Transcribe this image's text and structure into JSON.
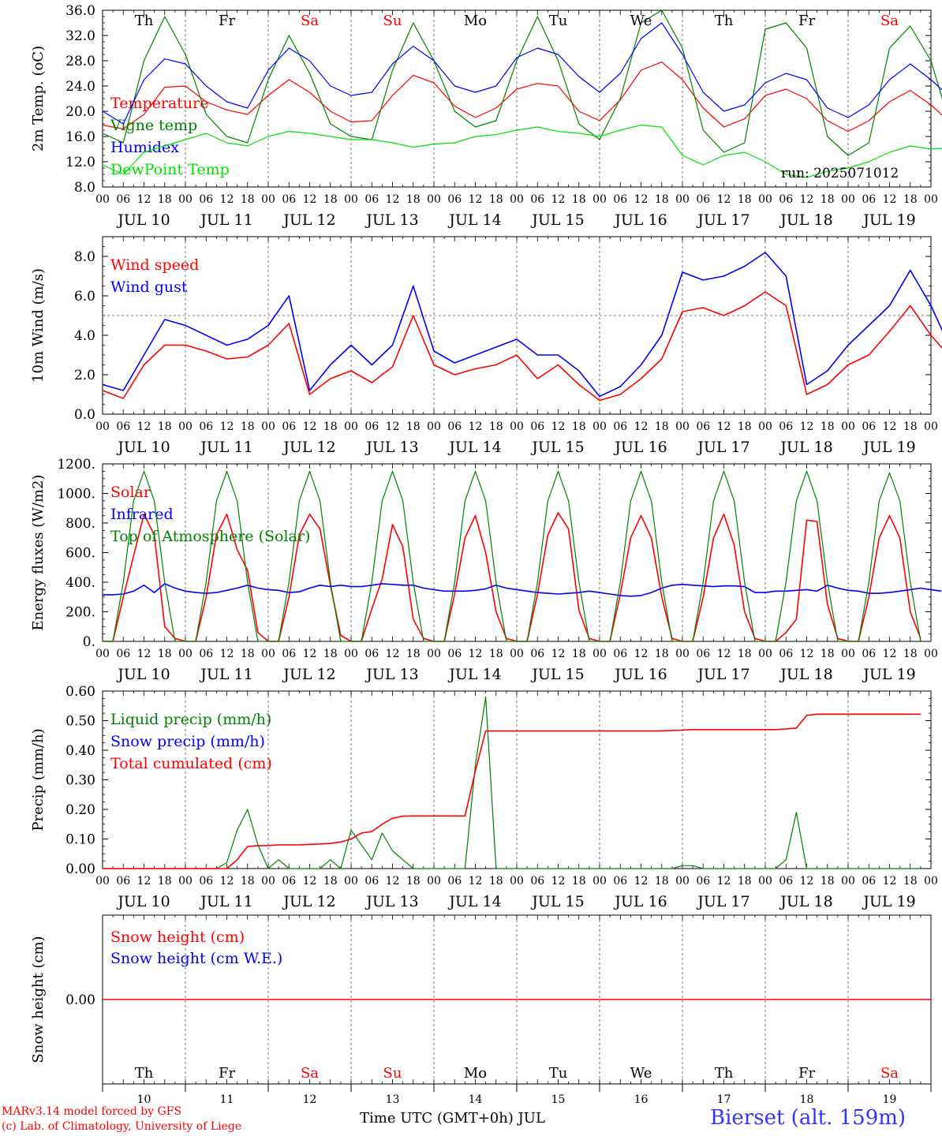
{
  "station": "Bierset (alt. 159m)",
  "credits": [
    "MARv3.14 model forced by GFS",
    "(c) Lab. of Climatology, University of Liege"
  ],
  "run_label": "run: 2025071012",
  "time_axis_label": "Time UTC (GMT+0h) JUL",
  "hour_ticks": [
    "00",
    "06",
    "12",
    "18"
  ],
  "days": [
    {
      "date": "JUL 10",
      "num": "10",
      "wd": "Th",
      "weekend": false
    },
    {
      "date": "JUL 11",
      "num": "11",
      "wd": "Fr",
      "weekend": false
    },
    {
      "date": "JUL 12",
      "num": "12",
      "wd": "Sa",
      "weekend": true
    },
    {
      "date": "JUL 13",
      "num": "13",
      "wd": "Su",
      "weekend": true
    },
    {
      "date": "JUL 14",
      "num": "14",
      "wd": "Mo",
      "weekend": false
    },
    {
      "date": "JUL 15",
      "num": "15",
      "wd": "Tu",
      "weekend": false
    },
    {
      "date": "JUL 16",
      "num": "16",
      "wd": "We",
      "weekend": false
    },
    {
      "date": "JUL 17",
      "num": "17",
      "wd": "Th",
      "weekend": false
    },
    {
      "date": "JUL 18",
      "num": "18",
      "wd": "Fr",
      "weekend": false
    },
    {
      "date": "JUL 19",
      "num": "19",
      "wd": "Sa",
      "weekend": true
    }
  ],
  "colors": {
    "red": "#ff0000",
    "blue": "#0000ff",
    "green": "#008000",
    "lime": "#00e000",
    "weekend": "#ff0000",
    "grid": "#555555"
  },
  "chart_data": [
    {
      "id": "temp",
      "type": "line",
      "ylabel": "2m Temp. (oC)",
      "ylim": [
        8,
        36
      ],
      "yticks": [
        "8.0",
        "12.0",
        "16.0",
        "20.0",
        "24.0",
        "28.0",
        "32.0",
        "36.0"
      ],
      "x_unit": "hours since JUL 10 00 UTC",
      "x_step": 6,
      "series": [
        {
          "name": "Temperature",
          "color": "red",
          "values": [
            17.8,
            17.2,
            19.5,
            23.8,
            24.0,
            21.5,
            20.2,
            19.5,
            22.5,
            25.0,
            23.0,
            20.0,
            18.3,
            18.5,
            22.5,
            25.7,
            24.5,
            20.8,
            19.0,
            20.5,
            23.5,
            24.4,
            24.0,
            20.0,
            18.5,
            21.8,
            26.5,
            27.8,
            25.0,
            20.5,
            17.5,
            18.8,
            22.5,
            23.5,
            22.0,
            18.5,
            16.8,
            18.5,
            21.5,
            23.3,
            21.0,
            18.0,
            16.7,
            18.5,
            21.5,
            23.5,
            22.0,
            19.0,
            18.0,
            19.5,
            25.0,
            29.5,
            27.0,
            21.0,
            17.3,
            19.0,
            24.5,
            28.3,
            26.0,
            21.8
          ]
        },
        {
          "name": "Vigne temp",
          "color": "green",
          "values": [
            16.5,
            15.0,
            28.0,
            35.0,
            29.0,
            19.5,
            16.0,
            15.0,
            25.0,
            32.0,
            26.0,
            18.0,
            16.0,
            15.5,
            26.5,
            34.0,
            28.0,
            20.0,
            17.5,
            18.5,
            28.0,
            35.0,
            28.0,
            18.0,
            15.5,
            22.0,
            34.0,
            36.0,
            30.0,
            17.0,
            13.5,
            15.0,
            33.0,
            34.0,
            30.0,
            16.0,
            13.0,
            15.0,
            30.0,
            33.5,
            28.0,
            17.0,
            13.5,
            15.0,
            30.0,
            33.0,
            27.0,
            17.0,
            15.0,
            16.5,
            32.0,
            38.0,
            32.0,
            20.0,
            14.0,
            17.0,
            34.0,
            37.0,
            30.0,
            18.0
          ]
        },
        {
          "name": "Humidex",
          "color": "blue",
          "values": [
            20.0,
            18.0,
            25.0,
            28.3,
            27.5,
            24.0,
            21.5,
            20.5,
            26.5,
            30.0,
            28.0,
            24.0,
            22.5,
            23.0,
            27.5,
            30.3,
            28.0,
            24.0,
            23.0,
            24.0,
            28.5,
            30.0,
            29.0,
            25.5,
            23.0,
            26.0,
            31.5,
            34.0,
            29.0,
            23.0,
            20.0,
            21.0,
            24.5,
            26.0,
            25.0,
            20.5,
            19.0,
            21.0,
            25.0,
            27.5,
            25.0,
            22.0,
            20.5,
            22.0,
            25.0,
            26.8,
            25.0,
            22.0,
            20.0,
            22.5,
            31.0,
            35.0,
            31.0,
            24.0,
            20.5,
            23.5,
            31.0,
            34.0,
            30.0,
            25.0
          ]
        },
        {
          "name": "DewPoint Temp",
          "color": "lime",
          "values": [
            11.5,
            10.0,
            13.5,
            14.5,
            15.5,
            16.5,
            15.0,
            14.5,
            16.0,
            16.8,
            16.5,
            16.0,
            15.5,
            15.5,
            15.0,
            14.3,
            14.8,
            15.0,
            16.0,
            16.3,
            17.0,
            17.5,
            16.8,
            16.5,
            16.0,
            17.0,
            17.8,
            17.5,
            13.0,
            11.5,
            13.0,
            13.5,
            12.0,
            10.0,
            9.5,
            10.5,
            11.0,
            12.0,
            13.5,
            14.5,
            14.0,
            14.2,
            14.0,
            14.5,
            14.8,
            13.8,
            13.0,
            12.5,
            11.5,
            11.0,
            13.0,
            15.5,
            16.0,
            14.0,
            13.8,
            15.0,
            18.0,
            18.0,
            15.5,
            14.0
          ]
        }
      ]
    },
    {
      "id": "wind",
      "type": "line",
      "ylabel": "10m Wind (m/s)",
      "ylim": [
        0,
        9
      ],
      "yticks": [
        "0.0",
        "2.0",
        "4.0",
        "6.0",
        "8.0"
      ],
      "ref_line": 5,
      "x_unit": "hours since JUL 10 00 UTC",
      "x_step": 6,
      "series": [
        {
          "name": "Wind speed",
          "color": "red",
          "values": [
            1.2,
            0.8,
            2.5,
            3.5,
            3.5,
            3.2,
            2.8,
            2.9,
            3.5,
            4.6,
            1.0,
            1.8,
            2.2,
            1.6,
            2.4,
            5.0,
            2.5,
            2.0,
            2.3,
            2.5,
            3.0,
            1.8,
            2.5,
            1.5,
            0.7,
            1.0,
            1.8,
            2.8,
            5.2,
            5.4,
            5.0,
            5.5,
            6.2,
            5.5,
            1.0,
            1.5,
            2.5,
            3.0,
            4.2,
            5.5,
            4.0,
            2.8,
            2.6,
            2.8,
            2.4,
            3.0,
            1.2,
            1.3,
            2.0,
            3.0,
            4.0,
            5.2,
            3.5,
            1.8,
            1.8,
            2.2,
            3.0,
            4.2,
            3.0,
            3.2
          ]
        },
        {
          "name": "Wind gust",
          "color": "blue",
          "values": [
            1.5,
            1.2,
            3.0,
            4.8,
            4.5,
            4.0,
            3.5,
            3.8,
            4.5,
            6.0,
            1.2,
            2.5,
            3.5,
            2.5,
            3.5,
            6.5,
            3.2,
            2.6,
            3.0,
            3.4,
            3.8,
            3.0,
            3.0,
            2.2,
            0.9,
            1.4,
            2.5,
            4.0,
            7.2,
            6.8,
            7.0,
            7.5,
            8.2,
            7.0,
            1.5,
            2.2,
            3.5,
            4.5,
            5.5,
            7.3,
            5.5,
            3.2,
            3.4,
            3.5,
            3.0,
            3.8,
            1.4,
            1.6,
            2.6,
            3.8,
            5.0,
            6.6,
            4.5,
            2.4,
            2.2,
            2.8,
            4.0,
            5.2,
            4.0,
            4.2
          ]
        }
      ]
    },
    {
      "id": "energy",
      "type": "line",
      "ylabel": "Energy fluxes (W/m2)",
      "ylim": [
        0,
        1200
      ],
      "yticks": [
        "0.",
        "200.",
        "400.",
        "600.",
        "800.",
        "1000.",
        "1200."
      ],
      "x_unit": "hours since JUL 10 00 UTC",
      "x_step": 3,
      "series": [
        {
          "name": "Solar",
          "color": "red",
          "values": [
            0,
            0,
            300,
            580,
            860,
            720,
            100,
            20,
            0,
            0,
            300,
            720,
            860,
            620,
            480,
            60,
            0,
            0,
            300,
            720,
            860,
            760,
            380,
            40,
            0,
            0,
            220,
            420,
            790,
            640,
            150,
            20,
            0,
            0,
            320,
            700,
            850,
            600,
            200,
            20,
            0,
            0,
            320,
            720,
            870,
            760,
            210,
            20,
            0,
            0,
            320,
            700,
            850,
            700,
            300,
            20,
            0,
            0,
            300,
            700,
            860,
            650,
            200,
            20,
            0,
            0,
            60,
            150,
            820,
            810,
            250,
            20,
            0,
            0,
            300,
            700,
            850,
            700,
            200,
            20
          ]
        },
        {
          "name": "Infrared",
          "color": "blue",
          "values": [
            315,
            315,
            320,
            340,
            380,
            330,
            390,
            360,
            340,
            330,
            325,
            330,
            345,
            360,
            380,
            360,
            350,
            345,
            330,
            335,
            360,
            380,
            370,
            380,
            370,
            370,
            380,
            390,
            385,
            380,
            380,
            360,
            350,
            340,
            340,
            340,
            345,
            355,
            380,
            360,
            350,
            340,
            330,
            325,
            320,
            325,
            330,
            340,
            330,
            320,
            310,
            305,
            310,
            330,
            360,
            380,
            385,
            380,
            375,
            370,
            375,
            375,
            370,
            330,
            330,
            340,
            340,
            345,
            350,
            340,
            380,
            360,
            345,
            340,
            325,
            325,
            330,
            340,
            350,
            360,
            350,
            340
          ]
        },
        {
          "name": "Top of Atmosphere (Solar)",
          "color": "green",
          "values": [
            0,
            0,
            400,
            950,
            1150,
            950,
            400,
            0,
            0,
            0,
            400,
            950,
            1150,
            950,
            400,
            0,
            0,
            0,
            400,
            950,
            1150,
            950,
            400,
            0,
            0,
            0,
            400,
            950,
            1150,
            950,
            400,
            0,
            0,
            0,
            400,
            950,
            1150,
            950,
            400,
            0,
            0,
            0,
            400,
            950,
            1150,
            950,
            400,
            0,
            0,
            0,
            400,
            950,
            1150,
            950,
            400,
            0,
            0,
            0,
            400,
            950,
            1150,
            950,
            400,
            0,
            0,
            0,
            400,
            950,
            1150,
            950,
            400,
            0,
            0,
            0,
            400,
            950,
            1140,
            950,
            400,
            0
          ]
        }
      ]
    },
    {
      "id": "precip",
      "type": "line",
      "ylabel": "Precip (mm/h)",
      "ylim": [
        0,
        0.6
      ],
      "yticks": [
        "0.00",
        "0.10",
        "0.20",
        "0.30",
        "0.40",
        "0.50",
        "0.60"
      ],
      "x_unit": "hours since JUL 10 00 UTC",
      "x_step": 3,
      "series": [
        {
          "name": "Liquid precip (mm/h)",
          "color": "green",
          "values": [
            0,
            0,
            0,
            0,
            0,
            0,
            0,
            0,
            0,
            0,
            0,
            0,
            0.02,
            0.13,
            0.2,
            0.08,
            0,
            0.03,
            0,
            0,
            0,
            0,
            0.03,
            0,
            0.13,
            0.08,
            0.03,
            0.12,
            0.06,
            0.03,
            0,
            0,
            0,
            0,
            0,
            0,
            0.35,
            0.58,
            0,
            0,
            0,
            0,
            0,
            0,
            0,
            0,
            0,
            0,
            0,
            0,
            0,
            0,
            0,
            0,
            0,
            0,
            0.01,
            0.01,
            0,
            0,
            0,
            0,
            0,
            0,
            0,
            0,
            0.03,
            0.19,
            0,
            0,
            0,
            0,
            0,
            0,
            0,
            0,
            0,
            0,
            0,
            0
          ]
        },
        {
          "name": "Snow precip (mm/h)",
          "color": "blue",
          "values": []
        },
        {
          "name": "Total cumulated (cm)",
          "color": "red",
          "values": [
            0,
            0,
            0,
            0,
            0,
            0,
            0,
            0,
            0,
            0,
            0,
            0,
            0,
            0.03,
            0.075,
            0.077,
            0.078,
            0.08,
            0.08,
            0.08,
            0.082,
            0.083,
            0.085,
            0.09,
            0.1,
            0.12,
            0.125,
            0.15,
            0.17,
            0.177,
            0.178,
            0.178,
            0.178,
            0.178,
            0.178,
            0.178,
            0.33,
            0.465,
            0.465,
            0.465,
            0.465,
            0.465,
            0.465,
            0.465,
            0.465,
            0.465,
            0.465,
            0.465,
            0.465,
            0.465,
            0.465,
            0.465,
            0.465,
            0.465,
            0.465,
            0.467,
            0.468,
            0.47,
            0.47,
            0.47,
            0.47,
            0.47,
            0.47,
            0.47,
            0.47,
            0.47,
            0.472,
            0.475,
            0.518,
            0.522,
            0.522,
            0.522,
            0.522,
            0.522,
            0.522,
            0.522,
            0.522,
            0.522,
            0.522,
            0.522
          ]
        }
      ]
    },
    {
      "id": "snow",
      "type": "line",
      "ylabel": "Snow height (cm)",
      "ylim": [
        -1,
        1
      ],
      "yticks": [
        "0.00"
      ],
      "x_unit": "hours since JUL 10 00 UTC",
      "x_step": 6,
      "series": [
        {
          "name": "Snow height (cm)",
          "color": "red",
          "values": [
            0,
            0
          ]
        },
        {
          "name": "Snow height (cm W.E.)",
          "color": "blue",
          "values": []
        }
      ]
    }
  ]
}
